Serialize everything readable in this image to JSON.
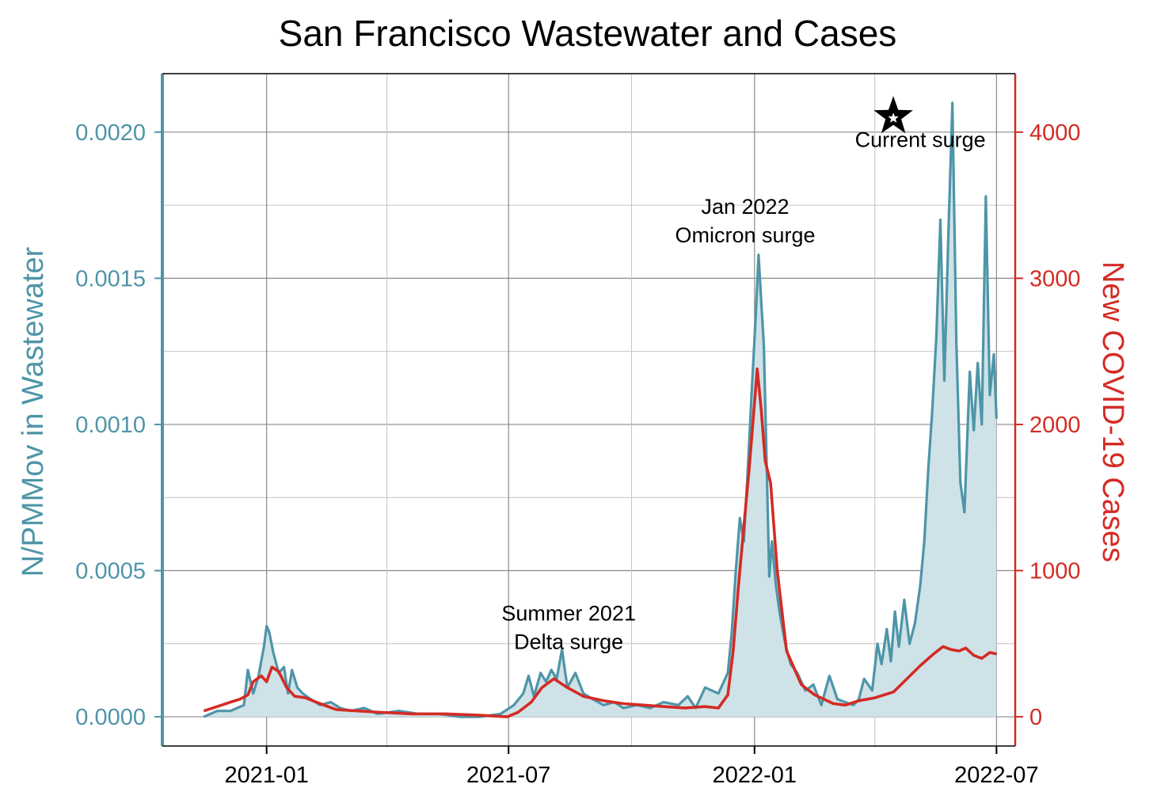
{
  "chart_data": {
    "type": "line",
    "title": "San Francisco Wastewater and Cases",
    "xlabel": "",
    "y_left_label": "N/PMMov in Wastewater",
    "y_right_label": "New COVID-19 Cases",
    "x_ticks": [
      "2021-01",
      "2021-07",
      "2022-01",
      "2022-07"
    ],
    "y_left_ticks": [
      "0.0000",
      "0.0005",
      "0.0010",
      "0.0015",
      "0.0020"
    ],
    "y_right_ticks": [
      "0",
      "1000",
      "2000",
      "3000",
      "4000"
    ],
    "y_left_range": [
      -0.0001,
      0.0022
    ],
    "y_right_range": [
      -200,
      4400
    ],
    "x_range": [
      "2020-10-15",
      "2022-07-15"
    ],
    "grid": true,
    "colors": {
      "wastewater_line": "#4e95a8",
      "wastewater_fill": "#cfe2e8",
      "cases_line": "#d42b24"
    },
    "annotations": [
      {
        "lines": [
          "Summer 2021",
          "Delta surge"
        ],
        "x": "2021-08-15",
        "y": 0.00033
      },
      {
        "lines": [
          "Jan 2022",
          "Omicron surge"
        ],
        "x": "2021-12-25",
        "y": 0.00172
      },
      {
        "lines": [
          "Current surge"
        ],
        "x": "2022-05-05",
        "y": 0.00195,
        "marker": "star"
      }
    ],
    "series": [
      {
        "axis": "left",
        "points": [
          [
            "2020-11-15",
            0.0
          ],
          [
            "2020-11-20",
            1e-05
          ],
          [
            "2020-11-25",
            2e-05
          ],
          [
            "2020-12-05",
            2e-05
          ],
          [
            "2020-12-10",
            3e-05
          ],
          [
            "2020-12-15",
            4e-05
          ],
          [
            "2020-12-18",
            0.00016
          ],
          [
            "2020-12-22",
            8e-05
          ],
          [
            "2020-12-26",
            0.00014
          ],
          [
            "2020-12-30",
            0.00024
          ],
          [
            "2021-01-01",
            0.00031
          ],
          [
            "2021-01-03",
            0.00029
          ],
          [
            "2021-01-06",
            0.00022
          ],
          [
            "2021-01-10",
            0.00015
          ],
          [
            "2021-01-14",
            0.00017
          ],
          [
            "2021-01-17",
            8e-05
          ],
          [
            "2021-01-20",
            0.00016
          ],
          [
            "2021-01-24",
            0.0001
          ],
          [
            "2021-01-28",
            8e-05
          ],
          [
            "2021-02-03",
            6e-05
          ],
          [
            "2021-02-10",
            4e-05
          ],
          [
            "2021-02-18",
            5e-05
          ],
          [
            "2021-02-25",
            3e-05
          ],
          [
            "2021-03-05",
            2e-05
          ],
          [
            "2021-03-15",
            3e-05
          ],
          [
            "2021-03-25",
            1e-05
          ],
          [
            "2021-04-10",
            2e-05
          ],
          [
            "2021-04-25",
            1e-05
          ],
          [
            "2021-05-10",
            1e-05
          ],
          [
            "2021-05-25",
            0.0
          ],
          [
            "2021-06-10",
            0.0
          ],
          [
            "2021-06-25",
            1e-05
          ],
          [
            "2021-07-05",
            4e-05
          ],
          [
            "2021-07-12",
            8e-05
          ],
          [
            "2021-07-16",
            0.00014
          ],
          [
            "2021-07-20",
            7e-05
          ],
          [
            "2021-07-25",
            0.00015
          ],
          [
            "2021-07-29",
            0.00012
          ],
          [
            "2021-08-02",
            0.00016
          ],
          [
            "2021-08-06",
            0.00013
          ],
          [
            "2021-08-10",
            0.00023
          ],
          [
            "2021-08-14",
            0.0001
          ],
          [
            "2021-08-20",
            0.00015
          ],
          [
            "2021-08-26",
            8e-05
          ],
          [
            "2021-09-02",
            6e-05
          ],
          [
            "2021-09-10",
            4e-05
          ],
          [
            "2021-09-18",
            5e-05
          ],
          [
            "2021-09-25",
            3e-05
          ],
          [
            "2021-10-05",
            4e-05
          ],
          [
            "2021-10-15",
            3e-05
          ],
          [
            "2021-10-25",
            5e-05
          ],
          [
            "2021-11-05",
            4e-05
          ],
          [
            "2021-11-12",
            7e-05
          ],
          [
            "2021-11-18",
            3e-05
          ],
          [
            "2021-11-25",
            0.0001
          ],
          [
            "2021-12-05",
            8e-05
          ],
          [
            "2021-12-12",
            0.00015
          ],
          [
            "2021-12-15",
            0.00029
          ],
          [
            "2021-12-18",
            0.0005
          ],
          [
            "2021-12-21",
            0.00068
          ],
          [
            "2021-12-24",
            0.0006
          ],
          [
            "2021-12-27",
            0.00085
          ],
          [
            "2021-12-30",
            0.00112
          ],
          [
            "2022-01-02",
            0.00138
          ],
          [
            "2022-01-04",
            0.00158
          ],
          [
            "2022-01-06",
            0.00142
          ],
          [
            "2022-01-08",
            0.00127
          ],
          [
            "2022-01-10",
            0.00088
          ],
          [
            "2022-01-12",
            0.00048
          ],
          [
            "2022-01-14",
            0.0006
          ],
          [
            "2022-01-17",
            0.00045
          ],
          [
            "2022-01-20",
            0.00035
          ],
          [
            "2022-01-24",
            0.00025
          ],
          [
            "2022-01-28",
            0.00018
          ],
          [
            "2022-02-02",
            0.00015
          ],
          [
            "2022-02-08",
            9e-05
          ],
          [
            "2022-02-14",
            0.00011
          ],
          [
            "2022-02-20",
            4e-05
          ],
          [
            "2022-02-26",
            0.00014
          ],
          [
            "2022-03-04",
            6e-05
          ],
          [
            "2022-03-10",
            5e-05
          ],
          [
            "2022-03-16",
            4e-05
          ],
          [
            "2022-03-20",
            6e-05
          ],
          [
            "2022-03-24",
            0.00013
          ],
          [
            "2022-03-30",
            9e-05
          ],
          [
            "2022-04-03",
            0.00025
          ],
          [
            "2022-04-06",
            0.00018
          ],
          [
            "2022-04-10",
            0.0003
          ],
          [
            "2022-04-13",
            0.00019
          ],
          [
            "2022-04-16",
            0.00036
          ],
          [
            "2022-04-19",
            0.00024
          ],
          [
            "2022-04-23",
            0.0004
          ],
          [
            "2022-04-27",
            0.00025
          ],
          [
            "2022-05-01",
            0.00032
          ],
          [
            "2022-05-05",
            0.00045
          ],
          [
            "2022-05-08",
            0.0006
          ],
          [
            "2022-05-11",
            0.00085
          ],
          [
            "2022-05-14",
            0.00105
          ],
          [
            "2022-05-17",
            0.0013
          ],
          [
            "2022-05-20",
            0.0017
          ],
          [
            "2022-05-23",
            0.00115
          ],
          [
            "2022-05-26",
            0.00165
          ],
          [
            "2022-05-29",
            0.0021
          ],
          [
            "2022-06-01",
            0.00128
          ],
          [
            "2022-06-04",
            0.0008
          ],
          [
            "2022-06-07",
            0.0007
          ],
          [
            "2022-06-11",
            0.00118
          ],
          [
            "2022-06-14",
            0.00098
          ],
          [
            "2022-06-17",
            0.00121
          ],
          [
            "2022-06-20",
            0.001
          ],
          [
            "2022-06-23",
            0.00178
          ],
          [
            "2022-06-26",
            0.0011
          ],
          [
            "2022-06-29",
            0.00124
          ],
          [
            "2022-07-01",
            0.00102
          ]
        ]
      },
      {
        "axis": "right",
        "points": [
          [
            "2020-11-15",
            40
          ],
          [
            "2020-11-25",
            70
          ],
          [
            "2020-12-05",
            100
          ],
          [
            "2020-12-12",
            120
          ],
          [
            "2020-12-18",
            150
          ],
          [
            "2020-12-22",
            240
          ],
          [
            "2020-12-28",
            280
          ],
          [
            "2021-01-01",
            240
          ],
          [
            "2021-01-05",
            340
          ],
          [
            "2021-01-10",
            310
          ],
          [
            "2021-01-16",
            200
          ],
          [
            "2021-01-22",
            140
          ],
          [
            "2021-01-30",
            130
          ],
          [
            "2021-02-10",
            90
          ],
          [
            "2021-02-22",
            50
          ],
          [
            "2021-03-10",
            40
          ],
          [
            "2021-03-28",
            30
          ],
          [
            "2021-04-20",
            20
          ],
          [
            "2021-05-15",
            20
          ],
          [
            "2021-06-10",
            10
          ],
          [
            "2021-06-30",
            0
          ],
          [
            "2021-07-08",
            30
          ],
          [
            "2021-07-18",
            100
          ],
          [
            "2021-07-26",
            200
          ],
          [
            "2021-08-04",
            260
          ],
          [
            "2021-08-14",
            200
          ],
          [
            "2021-08-26",
            140
          ],
          [
            "2021-09-10",
            110
          ],
          [
            "2021-09-25",
            90
          ],
          [
            "2021-10-10",
            80
          ],
          [
            "2021-10-25",
            70
          ],
          [
            "2021-11-10",
            60
          ],
          [
            "2021-11-25",
            70
          ],
          [
            "2021-12-05",
            60
          ],
          [
            "2021-12-12",
            150
          ],
          [
            "2021-12-16",
            450
          ],
          [
            "2021-12-20",
            900
          ],
          [
            "2021-12-24",
            1300
          ],
          [
            "2021-12-28",
            1700
          ],
          [
            "2022-01-01",
            2150
          ],
          [
            "2022-01-03",
            2380
          ],
          [
            "2022-01-06",
            2100
          ],
          [
            "2022-01-09",
            1750
          ],
          [
            "2022-01-13",
            1600
          ],
          [
            "2022-01-18",
            1000
          ],
          [
            "2022-01-25",
            450
          ],
          [
            "2022-02-05",
            220
          ],
          [
            "2022-02-15",
            150
          ],
          [
            "2022-03-01",
            90
          ],
          [
            "2022-03-10",
            80
          ],
          [
            "2022-03-20",
            110
          ],
          [
            "2022-04-01",
            130
          ],
          [
            "2022-04-15",
            170
          ],
          [
            "2022-04-25",
            260
          ],
          [
            "2022-05-05",
            350
          ],
          [
            "2022-05-15",
            430
          ],
          [
            "2022-05-22",
            480
          ],
          [
            "2022-05-28",
            460
          ],
          [
            "2022-06-03",
            450
          ],
          [
            "2022-06-08",
            470
          ],
          [
            "2022-06-14",
            420
          ],
          [
            "2022-06-20",
            400
          ],
          [
            "2022-06-26",
            440
          ],
          [
            "2022-07-01",
            430
          ]
        ]
      }
    ]
  }
}
